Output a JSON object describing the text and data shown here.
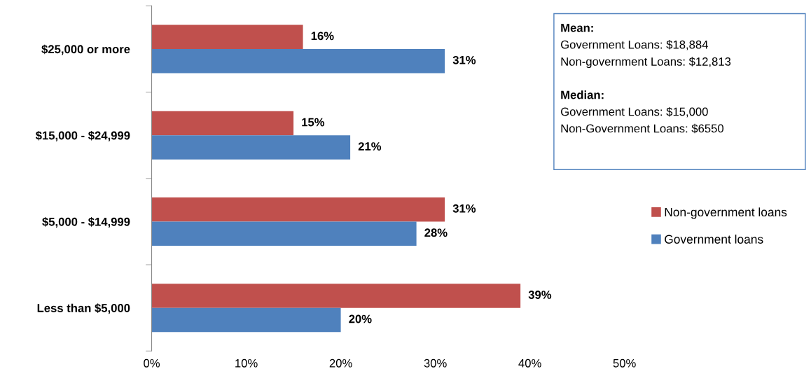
{
  "chart_data": {
    "type": "bar",
    "orientation": "horizontal",
    "categories": [
      "$25,000 or more",
      "$15,000 - $24,999",
      "$5,000 - $14,999",
      "Less than $5,000"
    ],
    "series": [
      {
        "name": "Non-government loans",
        "color": "#c0504d",
        "values": [
          16,
          15,
          31,
          39
        ],
        "value_labels": [
          "16%",
          "15%",
          "31%",
          "39%"
        ]
      },
      {
        "name": "Government loans",
        "color": "#4f81bd",
        "values": [
          31,
          21,
          28,
          20
        ],
        "value_labels": [
          "31%",
          "21%",
          "28%",
          "20%"
        ]
      }
    ],
    "xlim": [
      0,
      50
    ],
    "xticks": [
      {
        "value": 0,
        "label": "0%"
      },
      {
        "value": 10,
        "label": "10%"
      },
      {
        "value": 20,
        "label": "20%"
      },
      {
        "value": 30,
        "label": "30%"
      },
      {
        "value": 40,
        "label": "40%"
      },
      {
        "value": 50,
        "label": "50%"
      }
    ],
    "grid": false,
    "legend": "right",
    "annotations": [
      "Mean:\nGovernment Loans: $18,884\nNon-government Loans: $12,813",
      "Median:\nGovernment Loans: $15,000\nNon-Government Loans: $6550"
    ]
  }
}
